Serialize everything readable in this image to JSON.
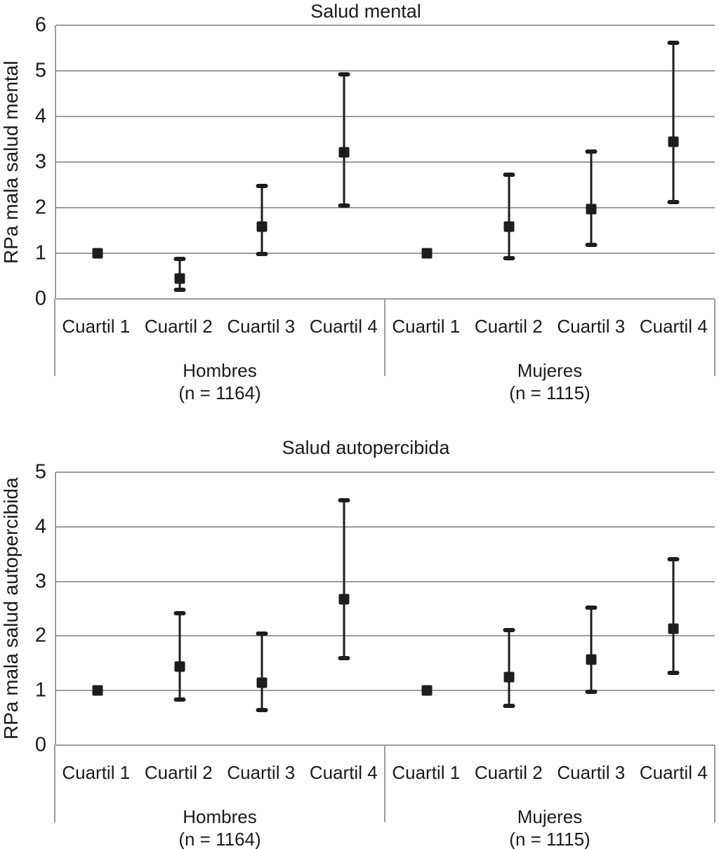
{
  "figure": {
    "description": "Two error-bar panels of adjusted prevalence ratios by income quartile and sex"
  },
  "colors": {
    "marker": "#1d1d1d",
    "grid": "#9c9c9c",
    "text": "#1a1a1a",
    "background": "#ffffff"
  },
  "chart_data": [
    {
      "type": "scatter",
      "subtype": "point-estimates-with-95ci-error-bars",
      "title": "Salud mental",
      "ylabel": "RPa mala salud mental",
      "ylim": [
        0,
        6
      ],
      "yticks": [
        0,
        1,
        2,
        3,
        4,
        5,
        6
      ],
      "grid": true,
      "legend": false,
      "marker": "square",
      "groups": [
        {
          "label": "Hombres",
          "n_label": "(n = 1164)",
          "categories": [
            "Cuartil 1",
            "Cuartil 2",
            "Cuartil 3",
            "Cuartil 4"
          ],
          "points": [
            {
              "category": "Cuartil 1",
              "value": 1.0,
              "ci_low": null,
              "ci_high": null
            },
            {
              "category": "Cuartil 2",
              "value": 0.45,
              "ci_low": 0.2,
              "ci_high": 0.88
            },
            {
              "category": "Cuartil 3",
              "value": 1.58,
              "ci_low": 0.98,
              "ci_high": 2.47
            },
            {
              "category": "Cuartil 4",
              "value": 3.22,
              "ci_low": 2.05,
              "ci_high": 4.93
            }
          ]
        },
        {
          "label": "Mujeres",
          "n_label": "(n = 1115)",
          "categories": [
            "Cuartil 1",
            "Cuartil 2",
            "Cuartil 3",
            "Cuartil 4"
          ],
          "points": [
            {
              "category": "Cuartil 1",
              "value": 1.0,
              "ci_low": null,
              "ci_high": null
            },
            {
              "category": "Cuartil 2",
              "value": 1.58,
              "ci_low": 0.9,
              "ci_high": 2.73
            },
            {
              "category": "Cuartil 3",
              "value": 1.97,
              "ci_low": 1.18,
              "ci_high": 3.23
            },
            {
              "category": "Cuartil 4",
              "value": 3.45,
              "ci_low": 2.12,
              "ci_high": 5.61
            }
          ]
        }
      ]
    },
    {
      "type": "scatter",
      "subtype": "point-estimates-with-95ci-error-bars",
      "title": "Salud autopercibida",
      "ylabel": "RPa mala salud autopercibida",
      "ylim": [
        0,
        5
      ],
      "yticks": [
        0,
        1,
        2,
        3,
        4,
        5
      ],
      "grid": true,
      "legend": false,
      "marker": "square",
      "groups": [
        {
          "label": "Hombres",
          "n_label": "(n = 1164)",
          "categories": [
            "Cuartil 1",
            "Cuartil 2",
            "Cuartil 3",
            "Cuartil 4"
          ],
          "points": [
            {
              "category": "Cuartil 1",
              "value": 1.0,
              "ci_low": null,
              "ci_high": null
            },
            {
              "category": "Cuartil 2",
              "value": 1.44,
              "ci_low": 0.83,
              "ci_high": 2.42
            },
            {
              "category": "Cuartil 3",
              "value": 1.14,
              "ci_low": 0.64,
              "ci_high": 2.04
            },
            {
              "category": "Cuartil 4",
              "value": 2.67,
              "ci_low": 1.6,
              "ci_high": 4.49
            }
          ]
        },
        {
          "label": "Mujeres",
          "n_label": "(n = 1115)",
          "categories": [
            "Cuartil 1",
            "Cuartil 2",
            "Cuartil 3",
            "Cuartil 4"
          ],
          "points": [
            {
              "category": "Cuartil 1",
              "value": 1.0,
              "ci_low": null,
              "ci_high": null
            },
            {
              "category": "Cuartil 2",
              "value": 1.25,
              "ci_low": 0.72,
              "ci_high": 2.11
            },
            {
              "category": "Cuartil 3",
              "value": 1.57,
              "ci_low": 0.98,
              "ci_high": 2.52
            },
            {
              "category": "Cuartil 4",
              "value": 2.13,
              "ci_low": 1.33,
              "ci_high": 3.41
            }
          ]
        }
      ]
    }
  ]
}
